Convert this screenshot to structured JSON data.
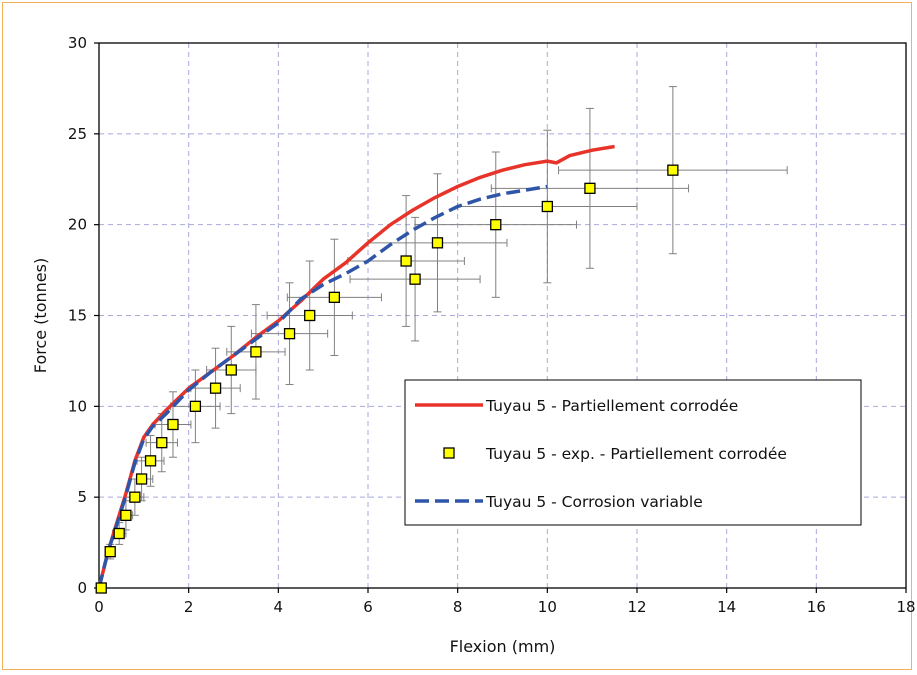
{
  "chart_data": {
    "type": "line",
    "xlabel": "Flexion (mm)",
    "ylabel": "Force (tonnes)",
    "xlim": [
      0,
      18
    ],
    "ylim": [
      0,
      30
    ],
    "xticks": [
      0,
      2,
      4,
      6,
      8,
      10,
      12,
      14,
      16,
      18
    ],
    "yticks": [
      0,
      5,
      10,
      15,
      20,
      25,
      30
    ],
    "grid": true,
    "legend_position": "bottom-right",
    "series": [
      {
        "name": "Tuyau 5 - Partiellement corrodée",
        "style": "solid",
        "color": "#e8332a",
        "x": [
          0,
          0.2,
          0.4,
          0.6,
          0.8,
          1.0,
          1.2,
          1.5,
          2.0,
          2.5,
          3.0,
          3.5,
          4.0,
          4.5,
          5.0,
          5.5,
          6.0,
          6.5,
          7.0,
          7.5,
          8.0,
          8.5,
          9.0,
          9.5,
          10.0,
          10.2,
          10.5,
          11.0,
          11.5
        ],
        "y": [
          0,
          2.0,
          3.6,
          5.2,
          7.0,
          8.3,
          9.0,
          9.8,
          11.0,
          11.9,
          12.8,
          13.8,
          14.7,
          15.8,
          17.0,
          17.9,
          19.0,
          20.0,
          20.8,
          21.5,
          22.1,
          22.6,
          23.0,
          23.3,
          23.5,
          23.4,
          23.8,
          24.1,
          24.3
        ]
      },
      {
        "name": "Tuyau 5 - exp. - Partiellement corrodée",
        "style": "markers",
        "color": "#ffff00",
        "x": [
          0.05,
          0.25,
          0.45,
          0.6,
          0.8,
          0.95,
          1.15,
          1.4,
          1.65,
          2.15,
          2.6,
          2.95,
          3.5,
          4.25,
          4.7,
          5.25,
          6.85,
          7.05,
          7.55,
          8.85,
          10.0,
          10.95,
          12.8
        ],
        "y": [
          0,
          2,
          3,
          4,
          5,
          6,
          7,
          8,
          9,
          10,
          11,
          12,
          13,
          14,
          15,
          16,
          18,
          17,
          19,
          20,
          21,
          22,
          23
        ],
        "xerr": [
          0.05,
          0.1,
          0.15,
          0.15,
          0.2,
          0.25,
          0.3,
          0.35,
          0.4,
          0.55,
          0.55,
          0.55,
          0.65,
          0.85,
          0.95,
          1.05,
          1.3,
          1.45,
          1.55,
          1.8,
          2.0,
          2.2,
          2.55
        ],
        "yerr": [
          0.2,
          0.4,
          0.6,
          0.8,
          1.0,
          1.2,
          1.4,
          1.6,
          1.8,
          2.0,
          2.2,
          2.4,
          2.6,
          2.8,
          3.0,
          3.2,
          3.6,
          3.4,
          3.8,
          4.0,
          4.2,
          4.4,
          4.6
        ]
      },
      {
        "name": "Tuyau 5 - Corrosion variable",
        "style": "dashed",
        "color": "#2f55a8",
        "x": [
          0,
          0.2,
          0.4,
          0.6,
          0.8,
          1.0,
          1.2,
          1.5,
          2.0,
          2.5,
          3.0,
          3.5,
          4.0,
          4.5,
          5.0,
          5.5,
          6.0,
          6.5,
          7.0,
          7.5,
          8.0,
          8.5,
          9.0,
          9.5,
          10.0
        ],
        "y": [
          0,
          2.0,
          3.5,
          5.1,
          6.9,
          8.2,
          8.9,
          9.6,
          10.9,
          11.9,
          12.8,
          13.7,
          14.6,
          15.9,
          16.7,
          17.3,
          18.0,
          18.9,
          19.7,
          20.4,
          21.0,
          21.4,
          21.7,
          21.9,
          22.1
        ]
      }
    ]
  },
  "colors": {
    "frame": "#f2b25a",
    "grid": "#a9a9dc",
    "marker_fill": "#ffff00",
    "error_bar": "#808080"
  }
}
